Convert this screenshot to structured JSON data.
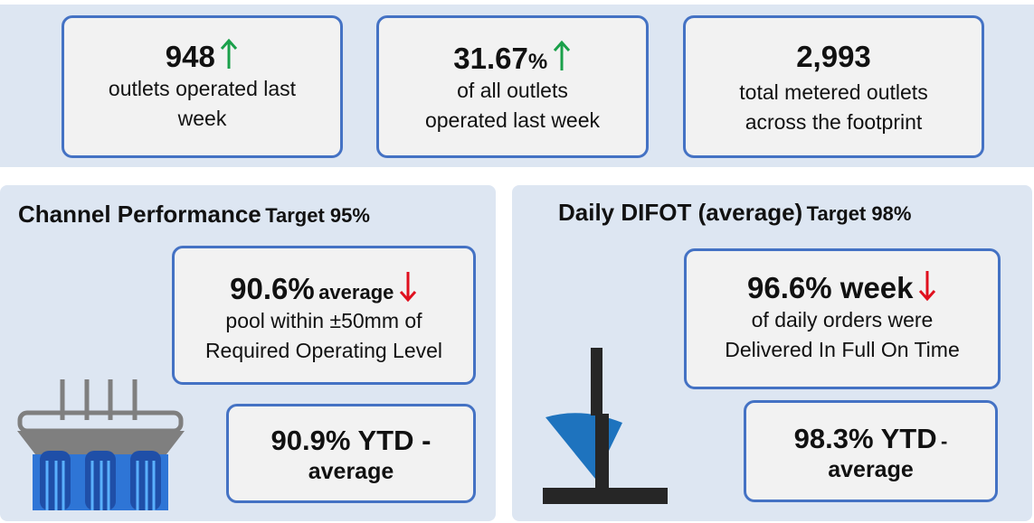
{
  "top_cards": [
    {
      "value": "948",
      "lines": [
        "outlets operated last",
        "week"
      ]
    },
    {
      "value": "31.67",
      "unit": "%",
      "lines": [
        "of all outlets",
        "operated last week"
      ]
    },
    {
      "value": "2,993",
      "lines": [
        "total metered outlets",
        "across the footprint"
      ]
    }
  ],
  "left_panel": {
    "title": "Channel Performance",
    "target": "Target 95%",
    "main_card": {
      "value": "90.6%",
      "qualifier": "average",
      "lines": [
        "pool within ±50mm of",
        "Required Operating Level"
      ]
    },
    "ytd_card": {
      "lines": [
        "90.9% YTD -",
        "average"
      ]
    }
  },
  "right_panel": {
    "title": "Daily DIFOT (average)",
    "target": "Target 98%",
    "main_card": {
      "value": "96.6% week",
      "lines": [
        "of daily orders were",
        "Delivered In Full On Time"
      ]
    },
    "ytd_card": {
      "value": "98.3% YTD",
      "dash": "-",
      "line2": "average"
    }
  }
}
